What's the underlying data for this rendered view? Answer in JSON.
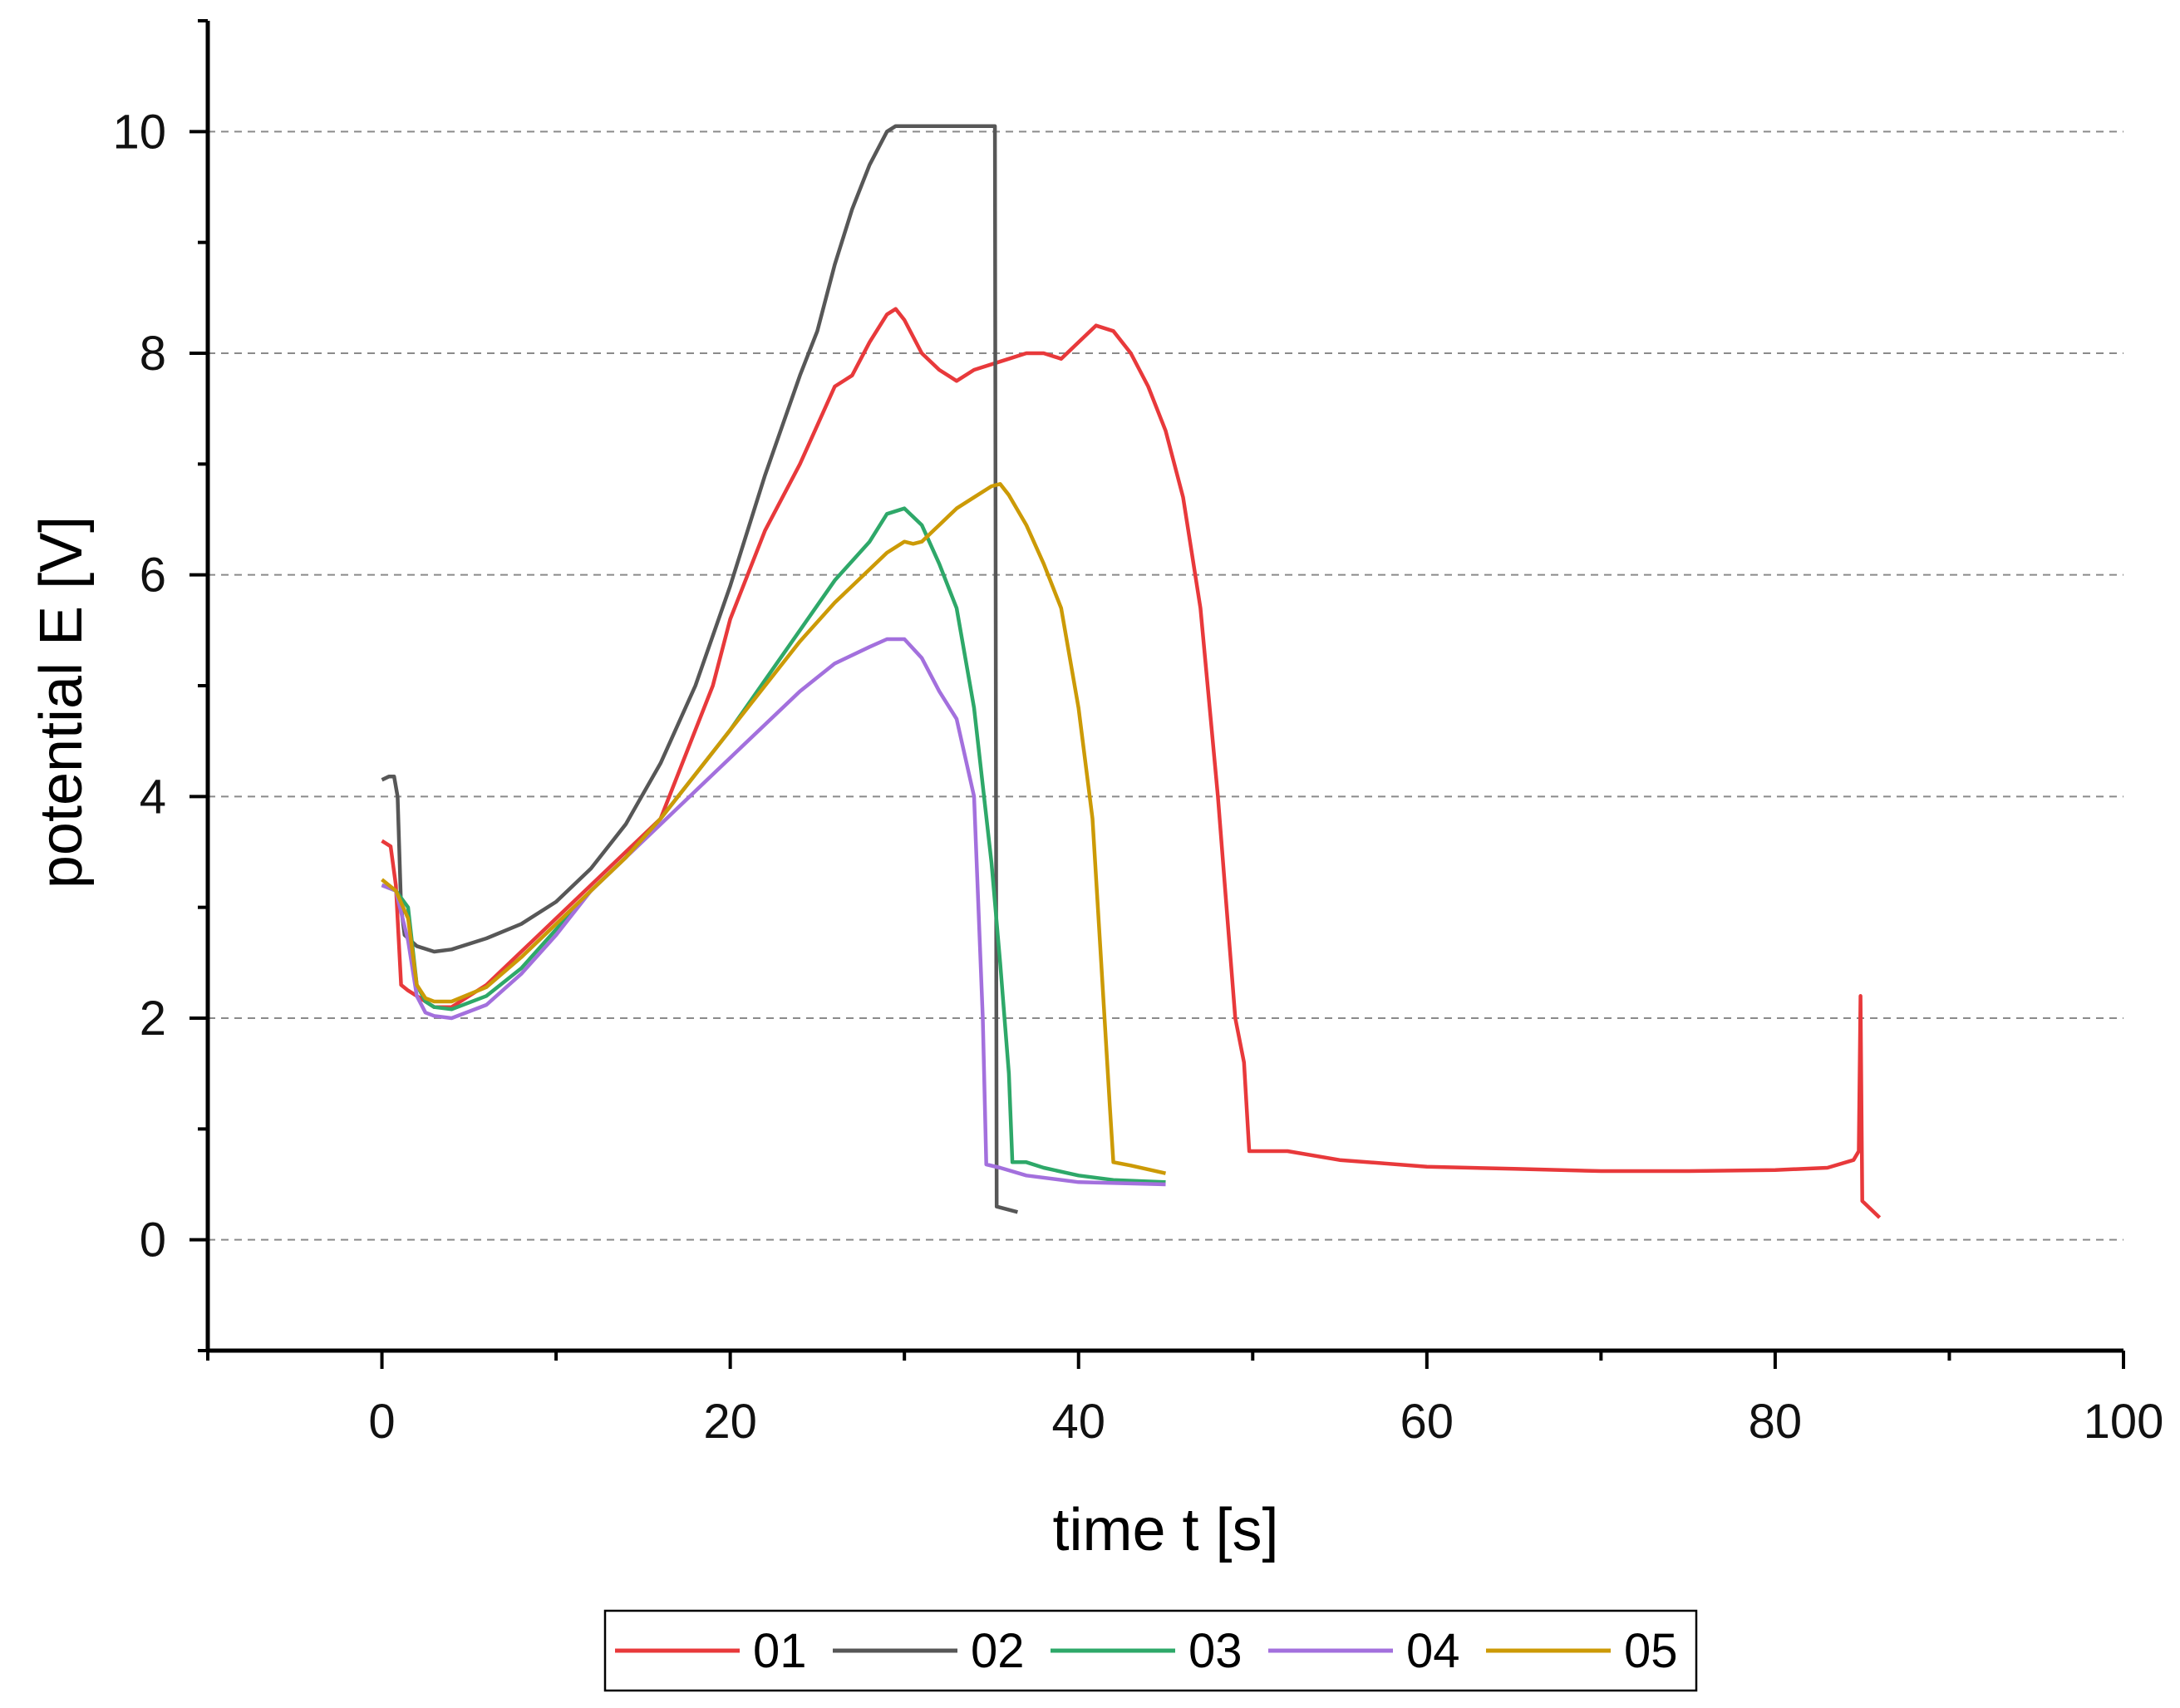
{
  "chart_data": {
    "type": "line",
    "xlabel": "time t [s]",
    "ylabel": "potential E [V]",
    "xlim": [
      -10,
      100
    ],
    "ylim": [
      -1,
      11
    ],
    "xticks": [
      "0",
      "20",
      "40",
      "60",
      "80",
      "100"
    ],
    "yticks": [
      "0",
      "2",
      "4",
      "6",
      "8",
      "10"
    ],
    "grid": "horizontal dashed at major y ticks",
    "legend_position": "bottom-center",
    "series": [
      {
        "name": "01",
        "color": "#e8393b",
        "points": [
          [
            0,
            3.6
          ],
          [
            0.5,
            3.55
          ],
          [
            0.8,
            3.2
          ],
          [
            1.1,
            2.3
          ],
          [
            1.5,
            2.25
          ],
          [
            2,
            2.2
          ],
          [
            3,
            2.1
          ],
          [
            4,
            2.1
          ],
          [
            6,
            2.3
          ],
          [
            8,
            2.6
          ],
          [
            10,
            2.9
          ],
          [
            12,
            3.2
          ],
          [
            14,
            3.5
          ],
          [
            16,
            3.8
          ],
          [
            18,
            4.6
          ],
          [
            19,
            5.0
          ],
          [
            20,
            5.6
          ],
          [
            22,
            6.4
          ],
          [
            24,
            7.0
          ],
          [
            26,
            7.7
          ],
          [
            27,
            7.8
          ],
          [
            28,
            8.1
          ],
          [
            29,
            8.35
          ],
          [
            29.5,
            8.4
          ],
          [
            30,
            8.3
          ],
          [
            31,
            8.0
          ],
          [
            32,
            7.85
          ],
          [
            33,
            7.75
          ],
          [
            34,
            7.85
          ],
          [
            35,
            7.9
          ],
          [
            36,
            7.95
          ],
          [
            37,
            8.0
          ],
          [
            38,
            8.0
          ],
          [
            39,
            7.95
          ],
          [
            40,
            8.1
          ],
          [
            41,
            8.25
          ],
          [
            42,
            8.2
          ],
          [
            43,
            8.0
          ],
          [
            44,
            7.7
          ],
          [
            45,
            7.3
          ],
          [
            46,
            6.7
          ],
          [
            47,
            5.7
          ],
          [
            48,
            4.0
          ],
          [
            48.5,
            3.0
          ],
          [
            49,
            2.0
          ],
          [
            49.5,
            1.6
          ],
          [
            49.8,
            0.8
          ],
          [
            52,
            0.8
          ],
          [
            55,
            0.72
          ],
          [
            60,
            0.66
          ],
          [
            65,
            0.64
          ],
          [
            70,
            0.62
          ],
          [
            75,
            0.62
          ],
          [
            80,
            0.63
          ],
          [
            83,
            0.65
          ],
          [
            84.5,
            0.72
          ],
          [
            84.8,
            0.8
          ],
          [
            84.9,
            2.2
          ],
          [
            85,
            0.35
          ],
          [
            86,
            0.2
          ]
        ]
      },
      {
        "name": "02",
        "color": "#575757",
        "points": [
          [
            0,
            4.15
          ],
          [
            0.4,
            4.18
          ],
          [
            0.7,
            4.18
          ],
          [
            0.9,
            4.0
          ],
          [
            1.1,
            3.0
          ],
          [
            1.3,
            2.75
          ],
          [
            2,
            2.65
          ],
          [
            3,
            2.6
          ],
          [
            4,
            2.62
          ],
          [
            6,
            2.72
          ],
          [
            8,
            2.85
          ],
          [
            10,
            3.05
          ],
          [
            12,
            3.35
          ],
          [
            14,
            3.75
          ],
          [
            16,
            4.3
          ],
          [
            18,
            5.0
          ],
          [
            20,
            5.9
          ],
          [
            22,
            6.9
          ],
          [
            24,
            7.8
          ],
          [
            25,
            8.2
          ],
          [
            26,
            8.8
          ],
          [
            27,
            9.3
          ],
          [
            28,
            9.7
          ],
          [
            29,
            10.0
          ],
          [
            29.5,
            10.05
          ],
          [
            35.2,
            10.05
          ],
          [
            35.3,
            0.3
          ],
          [
            36.5,
            0.25
          ]
        ]
      },
      {
        "name": "03",
        "color": "#2ea869",
        "points": [
          [
            0,
            3.2
          ],
          [
            0.8,
            3.15
          ],
          [
            1.5,
            3.0
          ],
          [
            2,
            2.3
          ],
          [
            2.5,
            2.15
          ],
          [
            3,
            2.1
          ],
          [
            4,
            2.08
          ],
          [
            6,
            2.2
          ],
          [
            8,
            2.45
          ],
          [
            10,
            2.8
          ],
          [
            12,
            3.15
          ],
          [
            14,
            3.45
          ],
          [
            16,
            3.8
          ],
          [
            18,
            4.2
          ],
          [
            20,
            4.6
          ],
          [
            22,
            5.05
          ],
          [
            24,
            5.5
          ],
          [
            26,
            5.95
          ],
          [
            28,
            6.3
          ],
          [
            29,
            6.55
          ],
          [
            30,
            6.6
          ],
          [
            31,
            6.45
          ],
          [
            32,
            6.1
          ],
          [
            33,
            5.7
          ],
          [
            34,
            4.8
          ],
          [
            35,
            3.4
          ],
          [
            35.5,
            2.5
          ],
          [
            36,
            1.5
          ],
          [
            36.2,
            0.7
          ],
          [
            37,
            0.7
          ],
          [
            38,
            0.65
          ],
          [
            40,
            0.58
          ],
          [
            42,
            0.54
          ],
          [
            45,
            0.52
          ]
        ]
      },
      {
        "name": "04",
        "color": "#a370dd",
        "points": [
          [
            0,
            3.2
          ],
          [
            0.8,
            3.15
          ],
          [
            1.5,
            2.7
          ],
          [
            2,
            2.2
          ],
          [
            2.5,
            2.05
          ],
          [
            3,
            2.02
          ],
          [
            4,
            2.0
          ],
          [
            6,
            2.12
          ],
          [
            8,
            2.4
          ],
          [
            10,
            2.75
          ],
          [
            12,
            3.15
          ],
          [
            14,
            3.45
          ],
          [
            16,
            3.75
          ],
          [
            18,
            4.05
          ],
          [
            20,
            4.35
          ],
          [
            22,
            4.65
          ],
          [
            24,
            4.95
          ],
          [
            26,
            5.2
          ],
          [
            28,
            5.35
          ],
          [
            29,
            5.42
          ],
          [
            30,
            5.42
          ],
          [
            31,
            5.25
          ],
          [
            32,
            4.95
          ],
          [
            33,
            4.7
          ],
          [
            34,
            4.0
          ],
          [
            34.5,
            2.0
          ],
          [
            34.7,
            0.68
          ],
          [
            35.5,
            0.65
          ],
          [
            37,
            0.58
          ],
          [
            40,
            0.52
          ],
          [
            45,
            0.5
          ]
        ]
      },
      {
        "name": "05",
        "color": "#cc9a06",
        "points": [
          [
            0,
            3.25
          ],
          [
            0.8,
            3.15
          ],
          [
            1.5,
            2.9
          ],
          [
            2,
            2.3
          ],
          [
            2.5,
            2.18
          ],
          [
            3,
            2.15
          ],
          [
            4,
            2.15
          ],
          [
            6,
            2.28
          ],
          [
            8,
            2.55
          ],
          [
            10,
            2.85
          ],
          [
            12,
            3.15
          ],
          [
            14,
            3.45
          ],
          [
            16,
            3.8
          ],
          [
            18,
            4.2
          ],
          [
            20,
            4.6
          ],
          [
            22,
            5.0
          ],
          [
            24,
            5.4
          ],
          [
            26,
            5.75
          ],
          [
            28,
            6.05
          ],
          [
            29,
            6.2
          ],
          [
            30,
            6.3
          ],
          [
            30.5,
            6.28
          ],
          [
            31,
            6.3
          ],
          [
            32,
            6.45
          ],
          [
            33,
            6.6
          ],
          [
            34,
            6.7
          ],
          [
            35,
            6.8
          ],
          [
            35.5,
            6.82
          ],
          [
            36,
            6.72
          ],
          [
            37,
            6.45
          ],
          [
            38,
            6.1
          ],
          [
            39,
            5.7
          ],
          [
            40,
            4.8
          ],
          [
            40.8,
            3.8
          ],
          [
            41.3,
            2.5
          ],
          [
            41.8,
            1.2
          ],
          [
            42,
            0.7
          ],
          [
            43,
            0.67
          ],
          [
            45,
            0.6
          ]
        ]
      }
    ]
  }
}
